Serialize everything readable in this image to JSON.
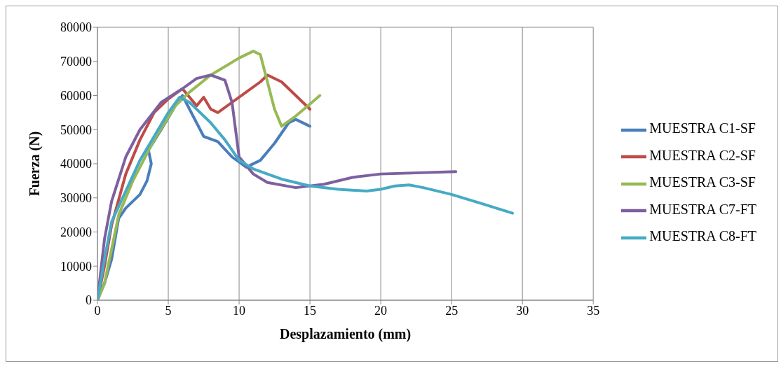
{
  "chart_data": {
    "type": "line",
    "xlabel": "Desplazamiento (mm)",
    "ylabel": "Fuerza (N)",
    "xlim": [
      0,
      35
    ],
    "xticks": [
      0,
      5,
      10,
      15,
      20,
      25,
      30,
      35
    ],
    "ylim": [
      0,
      80000
    ],
    "yticks": [
      0,
      10000,
      20000,
      30000,
      40000,
      50000,
      60000,
      70000,
      80000
    ],
    "grid": true,
    "legend": "right",
    "marker": "none",
    "line_style": "solid",
    "series": [
      {
        "name": "MUESTRA C1-SF",
        "color": "#4a7ebb",
        "x": [
          0,
          0.5,
          1,
          1.5,
          2,
          3,
          3.5,
          3.8,
          3.6,
          4.5,
          5.5,
          6,
          7,
          7.5,
          8.5,
          9.5,
          10.5,
          11.5,
          12.5,
          13.5,
          14,
          15
        ],
        "values": [
          0,
          5000,
          12000,
          24000,
          27000,
          31000,
          35000,
          40000,
          44000,
          50000,
          57000,
          60000,
          52000,
          48000,
          46500,
          42000,
          39000,
          41000,
          46000,
          52000,
          53000,
          51000
        ]
      },
      {
        "name": "MUESTRA C2-SF",
        "color": "#be4b48",
        "x": [
          0,
          0.5,
          1,
          2,
          3,
          4,
          5,
          6,
          7,
          7.5,
          8,
          8.5,
          9.5,
          10.5,
          11.5,
          12,
          13,
          14,
          15
        ],
        "values": [
          0,
          10000,
          22000,
          37000,
          47000,
          55000,
          59000,
          62000,
          57000,
          59500,
          56000,
          55000,
          58000,
          61000,
          64000,
          66000,
          64000,
          60000,
          56000
        ]
      },
      {
        "name": "MUESTRA C3-SF",
        "color": "#98b954",
        "x": [
          0,
          0.5,
          1,
          1.5,
          2.5,
          4,
          5.5,
          6.5,
          8,
          10,
          11,
          11.5,
          12.5,
          13,
          14,
          15,
          15.7
        ],
        "values": [
          0,
          5000,
          15000,
          25000,
          35000,
          47000,
          57000,
          61000,
          66000,
          71000,
          73000,
          72000,
          56000,
          51000,
          54000,
          57500,
          60000
        ]
      },
      {
        "name": "MUESTRA C7-FT",
        "color": "#7d60a0",
        "x": [
          0,
          0.5,
          1,
          2,
          3,
          4.5,
          6,
          7,
          8,
          9,
          9.5,
          10,
          11,
          12,
          14,
          16,
          18,
          20,
          25.3
        ],
        "values": [
          0,
          18000,
          29000,
          42000,
          50000,
          58000,
          62000,
          65000,
          66000,
          64500,
          58000,
          42000,
          37000,
          34500,
          33000,
          34000,
          36000,
          37000,
          37700
        ]
      },
      {
        "name": "MUESTRA C8-FT",
        "color": "#46aac5",
        "x": [
          0,
          0.5,
          1,
          2,
          3,
          4,
          5,
          5.8,
          6.5,
          8,
          9,
          10,
          11,
          13,
          15,
          17,
          19,
          20,
          21,
          22,
          23,
          25,
          27,
          29.3
        ],
        "values": [
          0,
          12000,
          23000,
          32000,
          41000,
          48000,
          55000,
          59500,
          58000,
          52000,
          47000,
          41000,
          38500,
          35500,
          33500,
          32500,
          32000,
          32500,
          33500,
          33800,
          33000,
          31000,
          28500,
          25500
        ]
      }
    ]
  }
}
